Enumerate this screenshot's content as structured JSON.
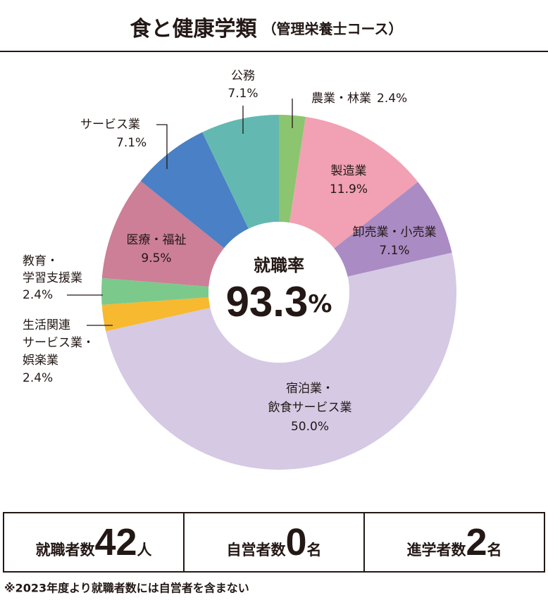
{
  "header": {
    "title": "食と健康学類",
    "subtitle": "（管理栄養士コース）"
  },
  "chart_data": {
    "type": "donut",
    "categories": [
      [
        "農業・林業"
      ],
      [
        "製造業"
      ],
      [
        "卸売業・小売業"
      ],
      [
        "宿泊業・",
        "飲食サービス業"
      ],
      [
        "生活関連",
        "サービス業・",
        "娯楽業"
      ],
      [
        "教育・",
        "学習支援業"
      ],
      [
        "医療・福祉"
      ],
      [
        "サービス業"
      ],
      [
        "公務"
      ]
    ],
    "values": [
      2.4,
      11.9,
      7.1,
      50.0,
      2.4,
      2.4,
      9.5,
      7.1,
      7.1
    ],
    "value_labels": [
      "2.4%",
      "11.9%",
      "7.1%",
      "50.0%",
      "2.4%",
      "2.4%",
      "9.5%",
      "7.1%",
      "7.1%"
    ],
    "colors": [
      "#8cc56f",
      "#f1a1b3",
      "#aa8bc4",
      "#d5c9e4",
      "#f6b92f",
      "#7cc98c",
      "#cc7f97",
      "#4a80c5",
      "#63b9b1"
    ]
  },
  "rate": {
    "label": "就職率",
    "value": 93.3,
    "unit": "%"
  },
  "stats": [
    {
      "label": "就職者数",
      "value": 42,
      "unit": "人"
    },
    {
      "label": "自営者数",
      "value": 0,
      "unit": "名"
    },
    {
      "label": "進学者数",
      "value": 2,
      "unit": "名"
    }
  ],
  "footnote": "※2023年度より就職者数には自営者を含まない"
}
